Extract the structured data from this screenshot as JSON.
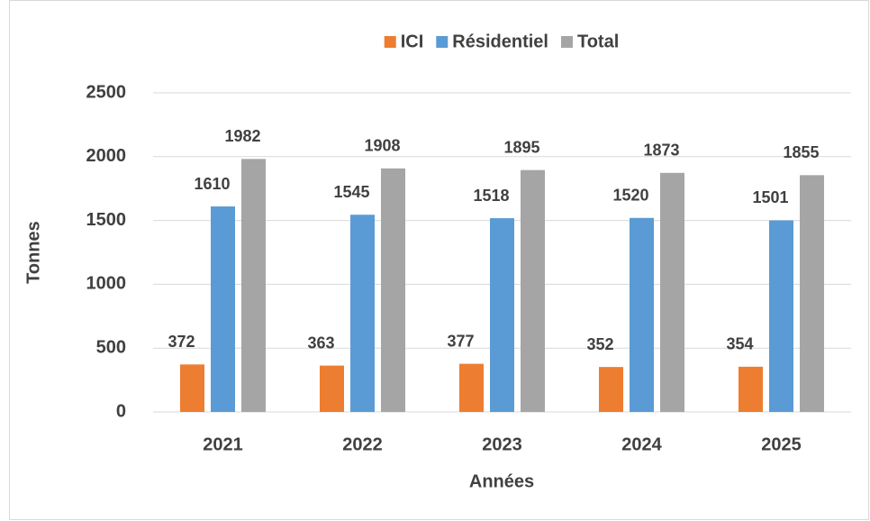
{
  "chart_data": {
    "type": "bar",
    "categories": [
      "2021",
      "2022",
      "2023",
      "2024",
      "2025"
    ],
    "series": [
      {
        "name": "ICI",
        "color": "#ed7d31",
        "values": [
          372,
          363,
          377,
          352,
          354
        ]
      },
      {
        "name": "Résidentiel",
        "color": "#5b9bd5",
        "values": [
          1610,
          1545,
          1518,
          1520,
          1501
        ]
      },
      {
        "name": "Total",
        "color": "#a5a5a5",
        "values": [
          1982,
          1908,
          1895,
          1873,
          1855
        ]
      }
    ],
    "ylabel": "Tonnes",
    "xlabel": "Années",
    "ylim": [
      0,
      2500
    ],
    "yticks": [
      0,
      500,
      1000,
      1500,
      2000,
      2500
    ],
    "grid": true,
    "legend": "top"
  }
}
